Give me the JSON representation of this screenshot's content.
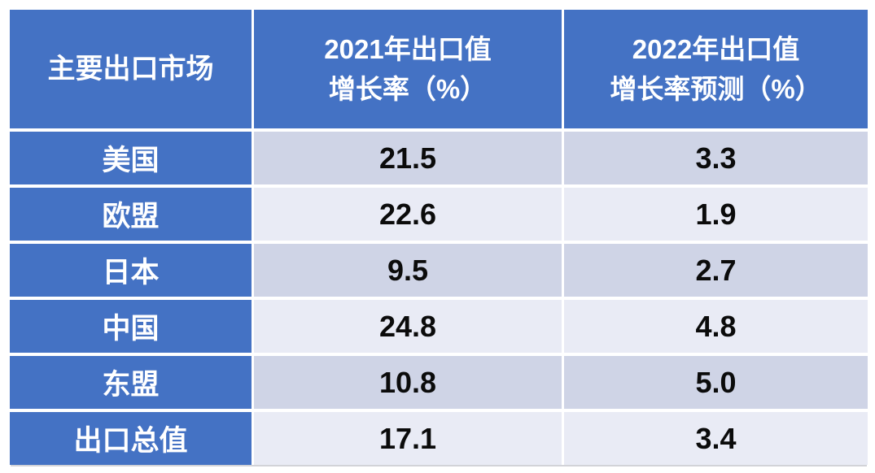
{
  "colors": {
    "header_blue": "#4472C4",
    "band_dark": "#CFD4E6",
    "band_light": "#E9EBF5",
    "grid_line": "#FFFFFF",
    "value_text": "#0B0B0B",
    "header_text": "#FFFFFF"
  },
  "table": {
    "header": {
      "market_col": "主要出口市场",
      "col_2021_line1": "2021年出口值",
      "col_2021_line2": "增长率（%）",
      "col_2022_line1": "2022年出口值",
      "col_2022_line2": "增长率预测（%）"
    },
    "rows": [
      {
        "market": "美国",
        "growth_2021": "21.5",
        "forecast_2022": "3.3"
      },
      {
        "market": "欧盟",
        "growth_2021": "22.6",
        "forecast_2022": "1.9"
      },
      {
        "market": "日本",
        "growth_2021": "9.5",
        "forecast_2022": "2.7"
      },
      {
        "market": "中国",
        "growth_2021": "24.8",
        "forecast_2022": "4.8"
      },
      {
        "market": "东盟",
        "growth_2021": "10.8",
        "forecast_2022": "5.0"
      },
      {
        "market": "出口总值",
        "growth_2021": "17.1",
        "forecast_2022": "3.4"
      }
    ]
  },
  "chart_data": {
    "type": "table",
    "columns": [
      "主要出口市场",
      "2021年出口值增长率（%）",
      "2022年出口值增长率预测（%）"
    ],
    "categories": [
      "美国",
      "欧盟",
      "日本",
      "中国",
      "东盟",
      "出口总值"
    ],
    "series": [
      {
        "name": "2021年出口值增长率（%）",
        "values": [
          21.5,
          22.6,
          9.5,
          24.8,
          10.8,
          17.1
        ]
      },
      {
        "name": "2022年出口值增长率预测（%）",
        "values": [
          3.3,
          1.9,
          2.7,
          4.8,
          5.0,
          3.4
        ]
      }
    ],
    "layout_hints": {
      "header_fill": "#4472C4",
      "row_banding": [
        "#CFD4E6",
        "#E9EBF5"
      ],
      "gridlines": "white"
    }
  }
}
